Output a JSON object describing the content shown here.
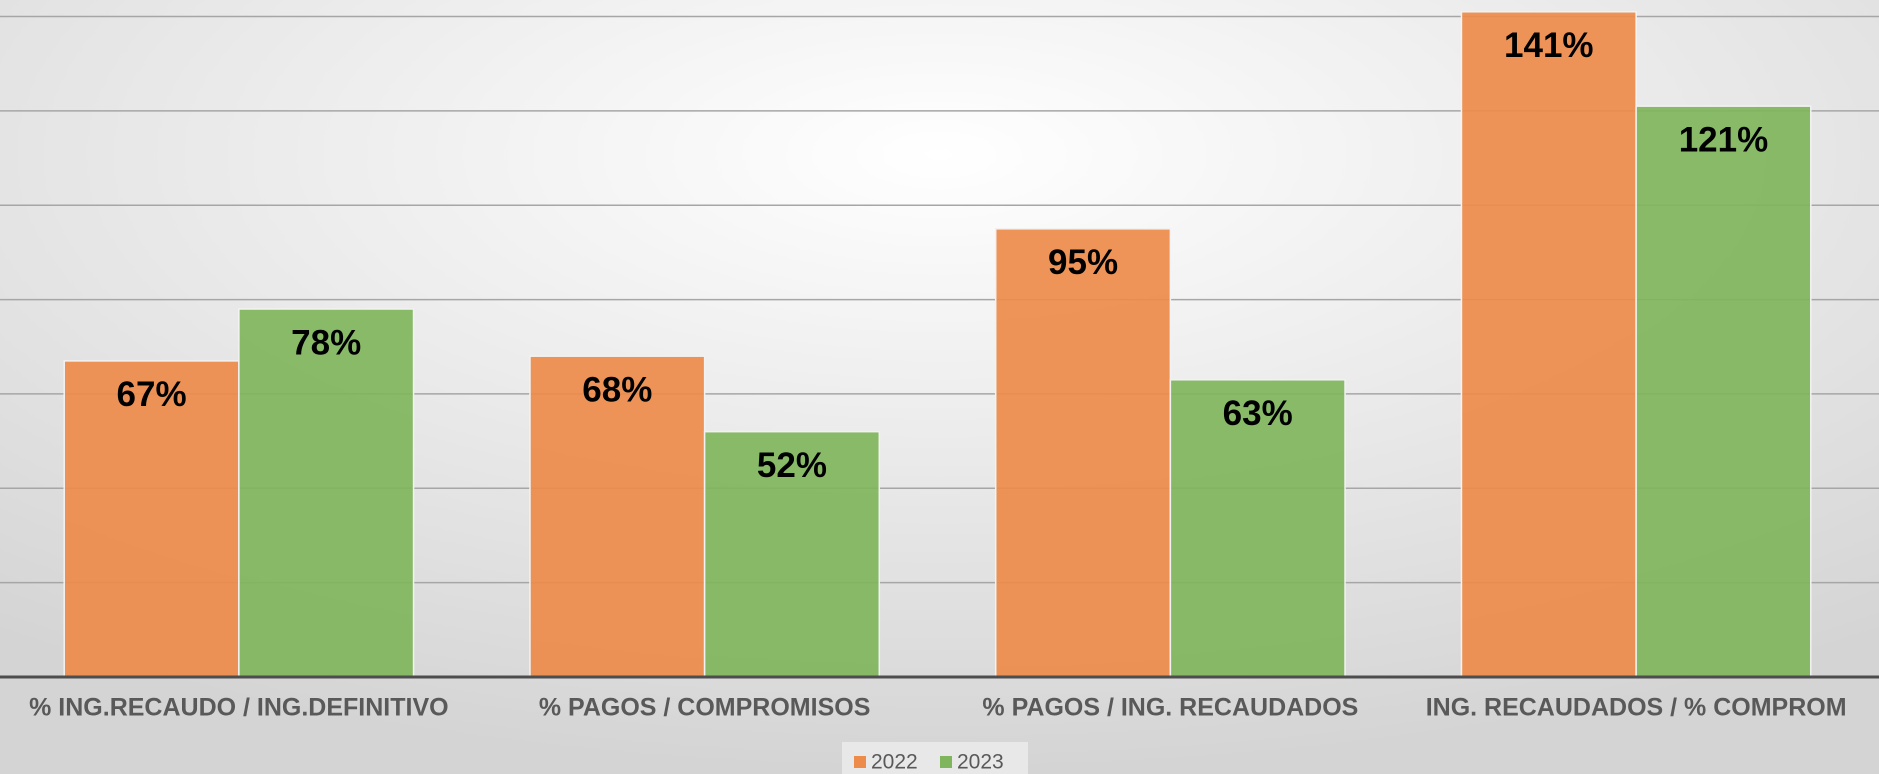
{
  "chart_data": {
    "type": "bar",
    "categories": [
      "% ING.RECAUDO / ING.DEFINITIVO",
      "% PAGOS / COMPROMISOS",
      "% PAGOS / ING. RECAUDADOS",
      "ING. RECAUDADOS / % COMPROM"
    ],
    "series": [
      {
        "name": "2022",
        "color": "#ed8b4a",
        "values": [
          67,
          68,
          95,
          141
        ],
        "value_labels": [
          "67%",
          "68%",
          "95%",
          "141%"
        ]
      },
      {
        "name": "2023",
        "color": "#7fb55c",
        "values": [
          78,
          52,
          63,
          121
        ],
        "value_labels": [
          "78%",
          "52%",
          "63%",
          "121%"
        ]
      }
    ],
    "ylim": [
      0,
      143.5
    ],
    "yticks": [
      0,
      20,
      40,
      60,
      80,
      100,
      120,
      140
    ],
    "grid": true,
    "legend": "bottom"
  }
}
